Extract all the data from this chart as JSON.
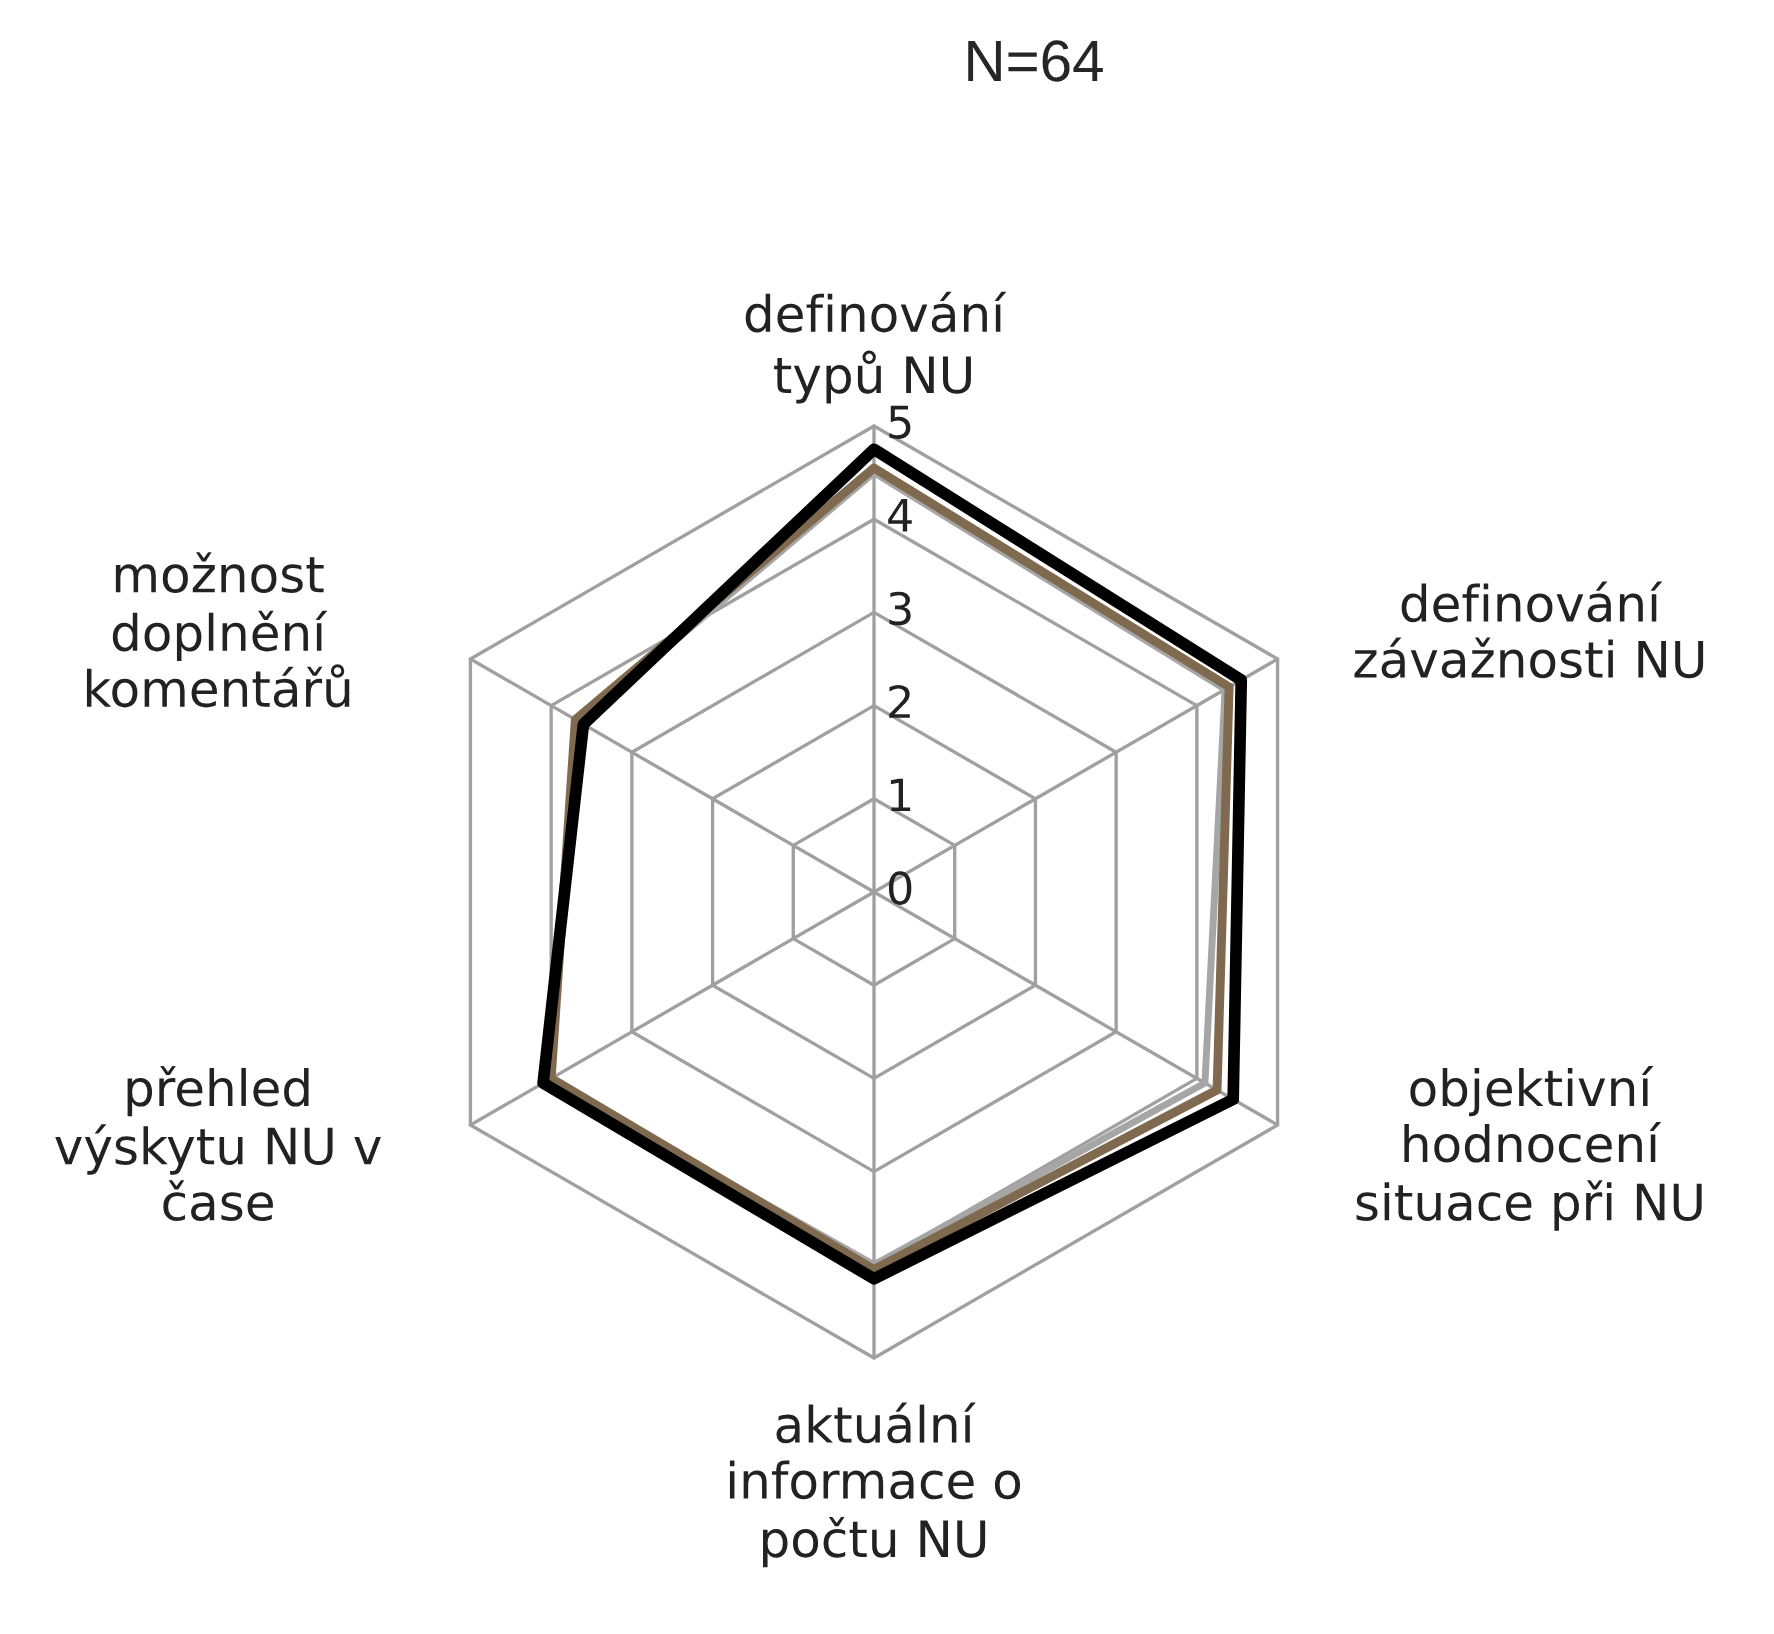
{
  "chart_data": {
    "type": "radar",
    "title": "N=64",
    "categories": [
      "definování\ntypů NU",
      "definování\nzávažnosti NU",
      "objektivní\nhodnocení\nsituace při NU",
      "aktuální\ninformace o\npočtu NU",
      "přehled\nvýskytu NU v\nčase",
      "možnost\ndoplnění\nkomentářů"
    ],
    "series": [
      {
        "color": "#a6a6a6",
        "values": [
          4.5,
          4.35,
          4.1,
          4.0,
          4.05,
          3.65
        ]
      },
      {
        "color": "#7f6a4f",
        "values": [
          4.55,
          4.4,
          4.25,
          4.05,
          4.0,
          3.7
        ]
      },
      {
        "color": "#000000",
        "values": [
          4.75,
          4.55,
          4.45,
          4.15,
          4.1,
          3.6
        ]
      }
    ],
    "ylim": [
      0,
      5
    ],
    "yticks": [
      0,
      1,
      2,
      3,
      4,
      5
    ],
    "grid": true,
    "marker": "none",
    "line_style": "solid"
  }
}
